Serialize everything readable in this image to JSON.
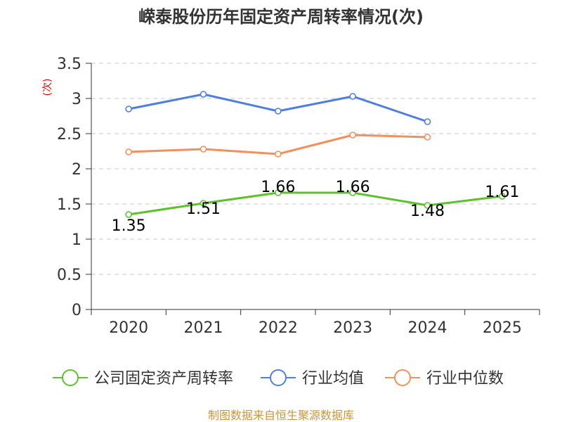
{
  "chart_data": {
    "type": "line",
    "title": "嵘泰股份历年固定资产周转率情况(次)",
    "ylabel": "(次)",
    "xlabel": "",
    "categories": [
      "2020",
      "2021",
      "2022",
      "2023",
      "2024",
      "2025"
    ],
    "ylim": [
      0,
      3.5
    ],
    "yticks": [
      0,
      0.5,
      1,
      1.5,
      2,
      2.5,
      3,
      3.5
    ],
    "ytick_labels": [
      "0",
      "0.5",
      "1",
      "1.5",
      "2",
      "2.5",
      "3",
      "3.5"
    ],
    "grid": true,
    "legend_position": "bottom",
    "series": [
      {
        "name": "公司固定资产周转率",
        "color": "#5cc22c",
        "values": [
          1.35,
          1.51,
          1.66,
          1.66,
          1.48,
          1.61
        ],
        "labels": [
          "1.35",
          "1.51",
          "1.66",
          "1.66",
          "1.48",
          "1.61"
        ],
        "show_labels": true
      },
      {
        "name": "行业均值",
        "color": "#4f7fdc",
        "values": [
          2.85,
          3.06,
          2.82,
          3.03,
          2.67,
          null
        ],
        "show_labels": false
      },
      {
        "name": "行业中位数",
        "color": "#f38f5a",
        "values": [
          2.24,
          2.28,
          2.21,
          2.48,
          2.45,
          null
        ],
        "show_labels": false
      }
    ],
    "source": "制图数据来自恒生聚源数据库"
  }
}
